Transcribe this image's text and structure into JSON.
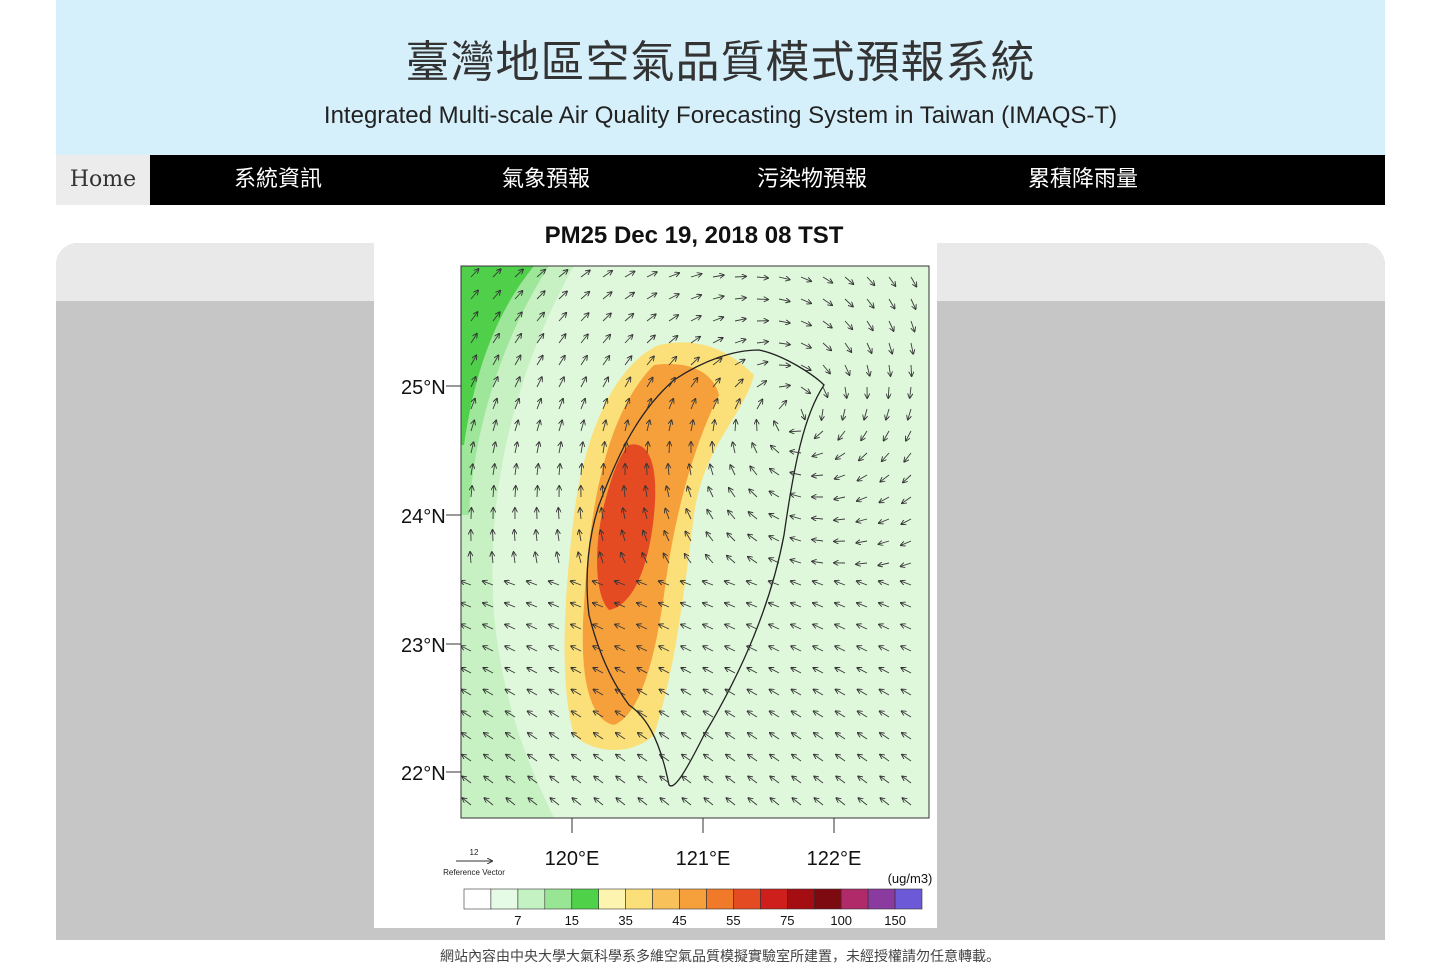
{
  "header": {
    "title_cn": "臺灣地區空氣品質模式預報系統",
    "title_en": "Integrated Multi-scale Air Quality Forecasting System in Taiwan (IMAQS-T)"
  },
  "nav": {
    "home": "Home",
    "items": [
      "系統資訊",
      "氣象預報",
      "污染物預報",
      "累積降雨量"
    ]
  },
  "chart_data": {
    "type": "heatmap",
    "title": "PM25 Dec 19, 2018 08 TST",
    "y_ticks": [
      "25°N",
      "24°N",
      "23°N",
      "22°N"
    ],
    "x_ticks": [
      "120°E",
      "121°E",
      "122°E"
    ],
    "colorbar": {
      "unit": "(ug/m3)",
      "labels": [
        "7",
        "15",
        "35",
        "45",
        "55",
        "75",
        "100",
        "150"
      ],
      "colors": [
        "#ffffff",
        "#e6fbe6",
        "#c4f2c2",
        "#98e693",
        "#4fd24a",
        "#fdf4b0",
        "#fbe07a",
        "#f9c15a",
        "#f6a03c",
        "#f0792a",
        "#e54b22",
        "#cf1f1c",
        "#a40d12",
        "#7c0a10",
        "#b02a6a",
        "#8b3aa0",
        "#6b59d8"
      ]
    },
    "reference_vector": {
      "value": "12",
      "label": "Reference Vector"
    }
  },
  "footer": "網站內容由中央大學大氣科學系多維空氣品質模擬實驗室所建置，未經授權請勿任意轉載。"
}
